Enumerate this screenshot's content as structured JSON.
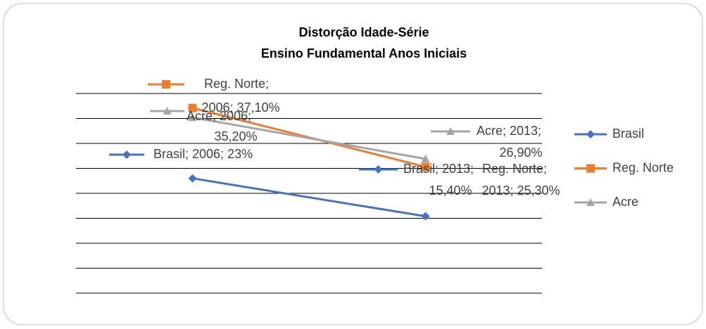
{
  "chart_data": {
    "type": "line",
    "title": "Distorção Idade-Série",
    "subtitle": "Ensino Fundamental Anos Iniciais",
    "categories": [
      "2006",
      "2013"
    ],
    "series": [
      {
        "name": "Brasil",
        "color": "#4472c4",
        "marker": "diamond",
        "values": [
          23,
          15.4
        ],
        "value_labels": [
          "Brasil; 2006; 23%",
          "Brasil; 2013; 15,40%"
        ]
      },
      {
        "name": "Reg. Norte",
        "color": "#ed7d31",
        "marker": "square",
        "values": [
          37.1,
          25.3
        ],
        "value_labels": [
          "Reg. Norte; 2006; 37,10%",
          "Reg. Norte; 2013; 25,30%"
        ]
      },
      {
        "name": "Acre",
        "color": "#a5a5a5",
        "marker": "triangle",
        "values": [
          35.2,
          26.9
        ],
        "value_labels": [
          "Acre; 2006; 35,20%",
          "Acre; 2013; 26,90%"
        ]
      }
    ],
    "ylim": [
      0,
      40
    ],
    "yticks": [
      0,
      5,
      10,
      15,
      20,
      25,
      30,
      35,
      40
    ],
    "grid": true,
    "legend": "right"
  }
}
